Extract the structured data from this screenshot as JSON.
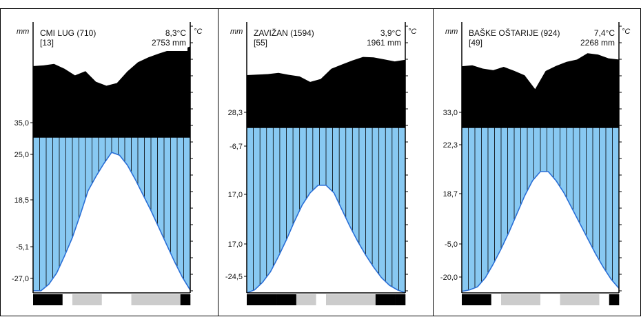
{
  "units": {
    "left": "mm",
    "right": "°C"
  },
  "colors": {
    "precip_fill": "#000000",
    "humid_fill": "#88c9f2",
    "temp_line": "#2a6fd6",
    "frost_sure": "#000000",
    "frost_prob": "#cccccc"
  },
  "chart_data": [
    {
      "type": "area",
      "station": "CMI LUG (710)",
      "mean_temp": "8,3°C",
      "years": "[13]",
      "annual_precip": "2753 mm",
      "left_labels": [
        "35,0",
        "25,0",
        "18,5",
        "-5,1",
        "-27,0"
      ],
      "precip_profile": [
        0.625,
        0.631,
        0.644,
        0.601,
        0.543,
        0.58,
        0.487,
        0.452,
        0.476,
        0.578,
        0.658,
        0.701,
        0.735,
        0.764,
        0.759,
        0.798
      ],
      "temp_profile": [
        0.015,
        0.015,
        0.06,
        0.14,
        0.26,
        0.39,
        0.55,
        0.72,
        0.82,
        0.91,
        0.99,
        0.97,
        0.9,
        0.8,
        0.69,
        0.58,
        0.46,
        0.34,
        0.22,
        0.11,
        0.02
      ],
      "frost_bar": [
        "sure",
        "sure",
        "sure",
        "none",
        "prob",
        "prob",
        "prob",
        "none",
        "none",
        "none",
        "prob",
        "prob",
        "prob",
        "prob",
        "prob",
        "sure"
      ]
    },
    {
      "type": "area",
      "station": "ZAVIŽAN (1594)",
      "mean_temp": "3,9°C",
      "years": "[55]",
      "annual_precip": "1961 mm",
      "left_labels": [
        "28,3",
        "-6,7",
        "17,0",
        "17,0",
        "-24,5"
      ],
      "precip_profile": [
        0.503,
        0.508,
        0.513,
        0.525,
        0.506,
        0.491,
        0.438,
        0.466,
        0.564,
        0.605,
        0.644,
        0.678,
        0.674,
        0.655,
        0.635,
        0.651
      ],
      "temp_profile": [
        0.0,
        0.02,
        0.07,
        0.14,
        0.24,
        0.35,
        0.47,
        0.58,
        0.66,
        0.71,
        0.71,
        0.66,
        0.55,
        0.44,
        0.34,
        0.25,
        0.17,
        0.1,
        0.05,
        0.02,
        0.0
      ],
      "frost_bar": [
        "sure",
        "sure",
        "sure",
        "sure",
        "sure",
        "prob",
        "prob",
        "none",
        "prob",
        "prob",
        "prob",
        "prob",
        "prob",
        "sure",
        "sure",
        "sure"
      ]
    },
    {
      "type": "area",
      "station": "BAŠKE OŠTARIJE (924)",
      "mean_temp": "7,4°C",
      "years": "[49]",
      "annual_precip": "2268 mm",
      "left_labels": [
        "33,0",
        "22,3",
        "18,7",
        "-5,0",
        "-20,0"
      ],
      "precip_profile": [
        0.589,
        0.598,
        0.566,
        0.55,
        0.583,
        0.545,
        0.501,
        0.369,
        0.543,
        0.592,
        0.631,
        0.653,
        0.713,
        0.701,
        0.665,
        0.653
      ],
      "temp_profile": [
        0.01,
        0.02,
        0.04,
        0.1,
        0.19,
        0.29,
        0.4,
        0.52,
        0.64,
        0.74,
        0.8,
        0.8,
        0.74,
        0.66,
        0.56,
        0.46,
        0.36,
        0.26,
        0.17,
        0.09,
        0.03
      ],
      "frost_bar": [
        "sure",
        "sure",
        "sure",
        "none",
        "prob",
        "prob",
        "prob",
        "prob",
        "none",
        "none",
        "prob",
        "prob",
        "prob",
        "prob",
        "none",
        "sure"
      ]
    }
  ]
}
